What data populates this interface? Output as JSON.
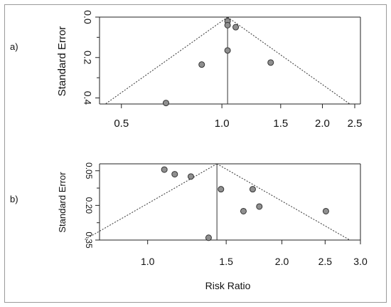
{
  "chart_data": [
    {
      "panel_label": "a)",
      "type": "scatter",
      "plot": "funnel",
      "xlabel": "",
      "ylabel": "Standard Error",
      "x_scale": "log",
      "y_reversed": true,
      "xlim": [
        0.43,
        2.6
      ],
      "ylim": [
        0.0,
        0.43
      ],
      "x_ticks": [
        0.5,
        1.0,
        1.5,
        2.0,
        2.5
      ],
      "x_tick_labels": [
        "0.5",
        "1.0",
        "1.5",
        "2.0",
        "2.5"
      ],
      "y_ticks": [
        0.0,
        0.2,
        0.4
      ],
      "y_tick_labels": [
        "0.0",
        "0.2",
        "0.4"
      ],
      "y_minor_ticks": [
        0.1,
        0.3
      ],
      "pooled_estimate": 1.04,
      "funnel_base_se": 0.43,
      "points": [
        {
          "x": 1.04,
          "y": 0.02
        },
        {
          "x": 1.04,
          "y": 0.04
        },
        {
          "x": 1.1,
          "y": 0.05
        },
        {
          "x": 1.04,
          "y": 0.165
        },
        {
          "x": 0.87,
          "y": 0.235
        },
        {
          "x": 1.4,
          "y": 0.225
        },
        {
          "x": 0.68,
          "y": 0.425
        }
      ]
    },
    {
      "panel_label": "b)",
      "type": "scatter",
      "plot": "funnel",
      "xlabel": "Risk Ratio",
      "ylabel": "Standard Error",
      "x_scale": "log",
      "y_reversed": true,
      "xlim": [
        0.78,
        3.0
      ],
      "ylim": [
        0.02,
        0.35
      ],
      "x_ticks": [
        1.0,
        1.5,
        2.0,
        2.5,
        3.0
      ],
      "x_tick_labels": [
        "1.0",
        "1.5",
        "2.0",
        "2.5",
        "3.0"
      ],
      "y_ticks": [
        0.05,
        0.2,
        0.35
      ],
      "y_tick_labels": [
        "0.05",
        "0.20",
        "0.35"
      ],
      "y_minor_ticks": [
        0.125,
        0.275
      ],
      "pooled_estimate": 1.43,
      "funnel_base_se": 0.35,
      "points": [
        {
          "x": 1.09,
          "y": 0.045
        },
        {
          "x": 1.15,
          "y": 0.065
        },
        {
          "x": 1.25,
          "y": 0.075
        },
        {
          "x": 1.46,
          "y": 0.13
        },
        {
          "x": 1.72,
          "y": 0.13
        },
        {
          "x": 1.78,
          "y": 0.205
        },
        {
          "x": 1.64,
          "y": 0.225
        },
        {
          "x": 2.51,
          "y": 0.225
        },
        {
          "x": 1.37,
          "y": 0.34
        }
      ]
    }
  ],
  "colors": {
    "point_fill": "#8f8f8f",
    "point_stroke": "#333333",
    "funnel_line": "#333333",
    "axis": "#222222"
  }
}
